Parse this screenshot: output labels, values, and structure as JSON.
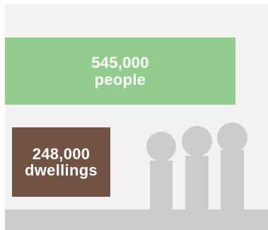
{
  "colors": {
    "panel_background": "#f2f2f2",
    "people_box": "#93cd8e",
    "dwellings_box": "#725343",
    "figures": "#cccccc",
    "ground": "#cccccc"
  },
  "stats": {
    "people": {
      "value": "545,000",
      "label": "people"
    },
    "dwellings": {
      "value": "248,000",
      "label": "dwellings"
    }
  },
  "illustration": {
    "figures_shown": 3,
    "figure_icon": "person-silhouette"
  }
}
